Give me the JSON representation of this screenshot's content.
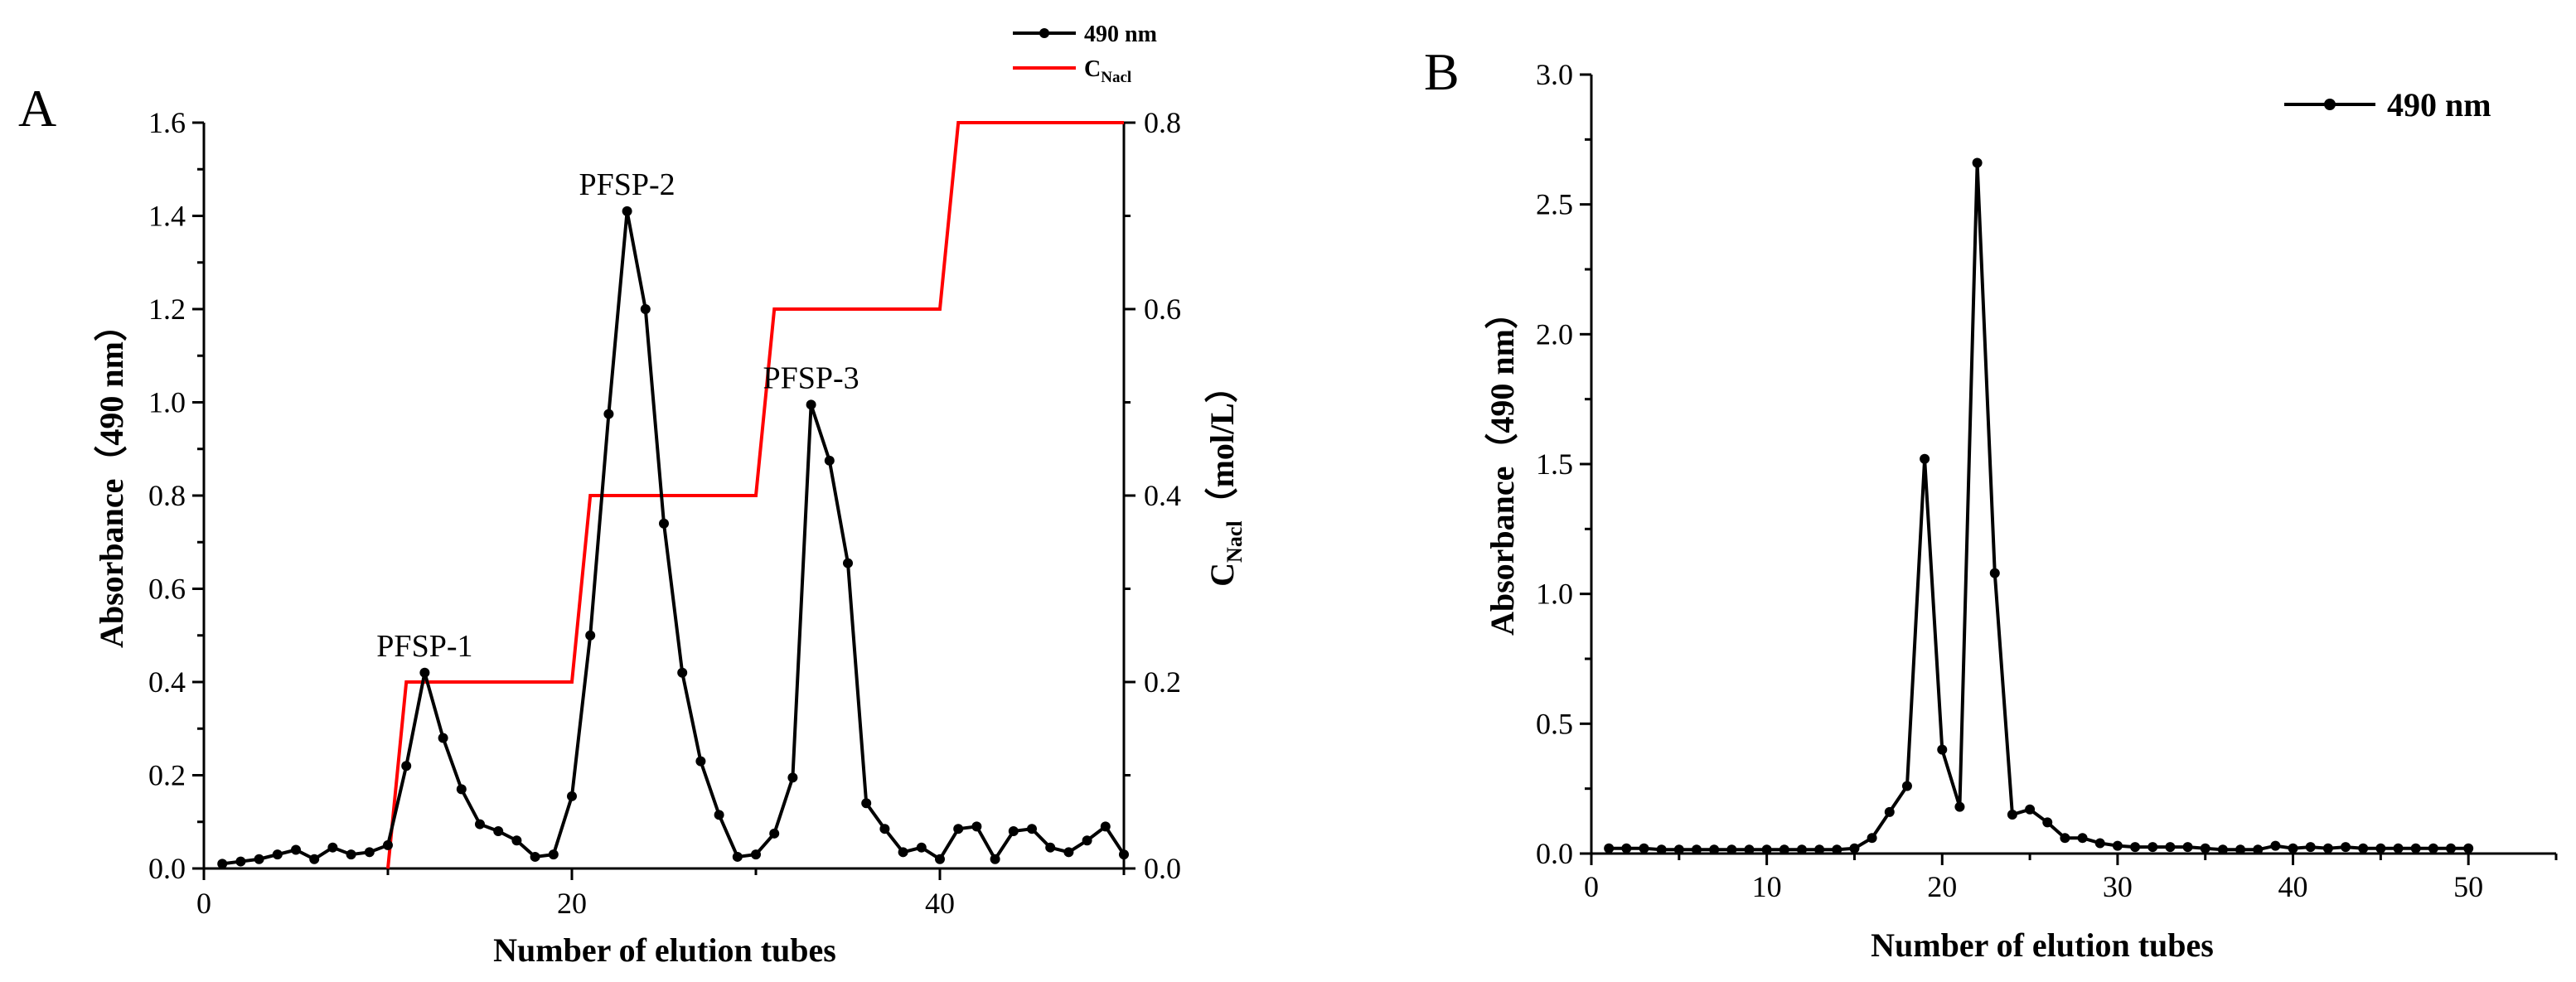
{
  "chart_data": [
    {
      "panel": "A",
      "type": "line",
      "xlabel": "Number of elution tubes",
      "ylabel": "Absorbance（490 nm）",
      "y2label_main": "C",
      "y2label_sub": "Nacl",
      "y2label_rest": "（mol/L）",
      "xlim": [
        0,
        50
      ],
      "ylim": [
        0,
        1.6
      ],
      "y2lim": [
        0,
        0.8
      ],
      "xticks": [
        "0",
        "20",
        "40"
      ],
      "xtick_values": [
        0,
        20,
        40
      ],
      "yticks": [
        "0.0",
        "0.2",
        "0.4",
        "0.6",
        "0.8",
        "1.0",
        "1.2",
        "1.4",
        "1.6"
      ],
      "y2ticks": [
        "0.0",
        "0.2",
        "0.4",
        "0.6",
        "0.8"
      ],
      "legend_position": "top-right",
      "series": [
        {
          "name": "490 nm",
          "axis": "left",
          "color": "#000000",
          "marker": "circle",
          "x": [
            1,
            2,
            3,
            4,
            5,
            6,
            7,
            8,
            9,
            10,
            11,
            12,
            13,
            14,
            15,
            16,
            17,
            18,
            19,
            20,
            21,
            22,
            23,
            24,
            25,
            26,
            27,
            28,
            29,
            30,
            31,
            32,
            33,
            34,
            35,
            36,
            37,
            38,
            39,
            40,
            41,
            42,
            43,
            44,
            45,
            46,
            47,
            48,
            49,
            50
          ],
          "values": [
            0.01,
            0.015,
            0.02,
            0.03,
            0.04,
            0.02,
            0.045,
            0.03,
            0.035,
            0.05,
            0.22,
            0.42,
            0.28,
            0.17,
            0.095,
            0.08,
            0.06,
            0.025,
            0.03,
            0.155,
            0.5,
            0.975,
            1.41,
            1.2,
            0.74,
            0.42,
            0.23,
            0.115,
            0.025,
            0.03,
            0.075,
            0.195,
            0.995,
            0.875,
            0.655,
            0.14,
            0.085,
            0.035,
            0.045,
            0.02,
            0.085,
            0.09,
            0.02,
            0.08,
            0.085,
            0.045,
            0.035,
            0.06,
            0.09,
            0.03
          ]
        },
        {
          "name": "C",
          "name_sub": "Nacl",
          "axis": "right",
          "color": "#ff0000",
          "marker": "none",
          "x": [
            10,
            11,
            20,
            21,
            30,
            31,
            40,
            41,
            50
          ],
          "values": [
            0,
            0.2,
            0.2,
            0.4,
            0.4,
            0.6,
            0.6,
            0.8,
            0.8
          ]
        }
      ],
      "annotations": [
        {
          "text": "PFSP-1",
          "x": 12,
          "y": 0.42
        },
        {
          "text": "PFSP-2",
          "x": 23,
          "y": 1.41
        },
        {
          "text": "PFSP-3",
          "x": 33,
          "y": 0.995
        }
      ]
    },
    {
      "panel": "B",
      "type": "line",
      "xlabel": "Number of elution tubes",
      "ylabel": "Absorbance（490 nm）",
      "xlim": [
        0,
        55
      ],
      "ylim": [
        0,
        3.0
      ],
      "xticks": [
        "0",
        "10",
        "20",
        "30",
        "40",
        "50"
      ],
      "xtick_values": [
        0,
        10,
        20,
        30,
        40,
        50
      ],
      "yticks": [
        "0.0",
        "0.5",
        "1.0",
        "1.5",
        "2.0",
        "2.5",
        "3.0"
      ],
      "legend_position": "top-right",
      "series": [
        {
          "name": "490 nm",
          "color": "#000000",
          "marker": "circle",
          "x": [
            1,
            2,
            3,
            4,
            5,
            6,
            7,
            8,
            9,
            10,
            11,
            12,
            13,
            14,
            15,
            16,
            17,
            18,
            19,
            20,
            21,
            22,
            23,
            24,
            25,
            26,
            27,
            28,
            29,
            30,
            31,
            32,
            33,
            34,
            35,
            36,
            37,
            38,
            39,
            40,
            41,
            42,
            43,
            44,
            45,
            46,
            47,
            48,
            49,
            50
          ],
          "values": [
            0.02,
            0.02,
            0.02,
            0.015,
            0.015,
            0.015,
            0.015,
            0.015,
            0.015,
            0.015,
            0.015,
            0.015,
            0.015,
            0.015,
            0.02,
            0.06,
            0.16,
            0.26,
            1.52,
            0.4,
            0.18,
            2.66,
            1.08,
            0.15,
            0.17,
            0.12,
            0.06,
            0.06,
            0.04,
            0.03,
            0.025,
            0.025,
            0.025,
            0.025,
            0.02,
            0.015,
            0.015,
            0.015,
            0.03,
            0.02,
            0.025,
            0.02,
            0.025,
            0.02,
            0.02,
            0.02,
            0.02,
            0.02,
            0.02,
            0.02
          ]
        }
      ]
    }
  ]
}
